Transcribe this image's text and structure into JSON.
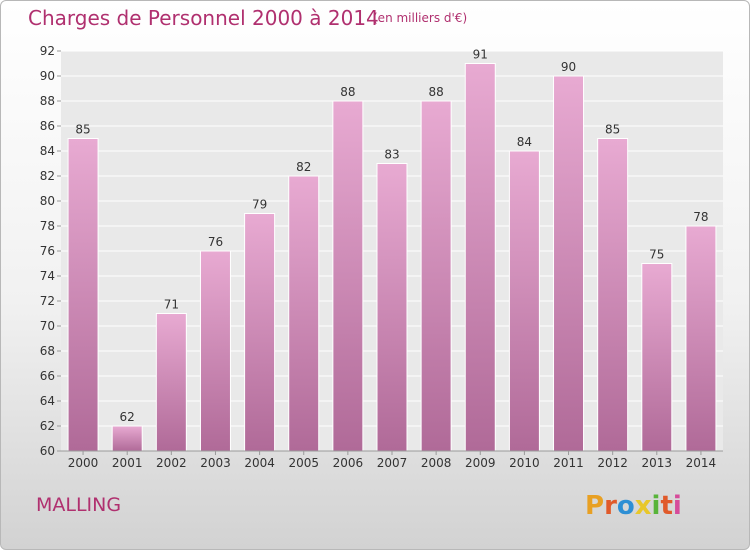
{
  "header": {
    "title": "Charges de Personnel 2000 à 2014",
    "subtitle": "(en milliers d'€)"
  },
  "footer": {
    "commune": "MALLING",
    "logo_text": "Proxiti",
    "logo_colors": [
      "#e8a023",
      "#e05a2a",
      "#2e8fd4",
      "#e8c72a",
      "#58b43a",
      "#e05a2a",
      "#d64b9a"
    ]
  },
  "colors": {
    "bar_light": "#e8aad2",
    "bar_dark": "#b06a98",
    "accent": "#b0306f",
    "grid": "#ffffff"
  },
  "chart_data": {
    "type": "bar",
    "categories": [
      "2000",
      "2001",
      "2002",
      "2003",
      "2004",
      "2005",
      "2006",
      "2007",
      "2008",
      "2009",
      "2010",
      "2011",
      "2012",
      "2013",
      "2014"
    ],
    "values": [
      85,
      62,
      71,
      76,
      79,
      82,
      88,
      83,
      88,
      91,
      84,
      90,
      85,
      75,
      78
    ],
    "title": "Charges de Personnel 2000 à 2014",
    "subtitle": "(en milliers d'€)",
    "xlabel": "",
    "ylabel": "",
    "ylim": [
      60,
      92
    ],
    "yticks": [
      60,
      62,
      64,
      66,
      68,
      70,
      72,
      74,
      76,
      78,
      80,
      82,
      84,
      86,
      88,
      90,
      92
    ],
    "grid": true,
    "data_labels": true
  }
}
